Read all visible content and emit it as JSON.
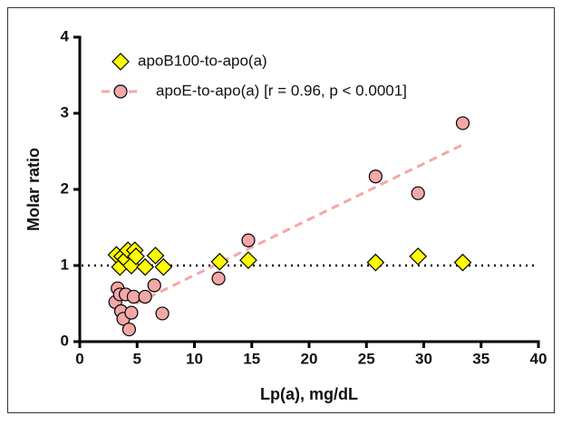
{
  "chart_data": {
    "type": "scatter",
    "x_label": "Lp(a), mg/dL",
    "y_label": "Molar ratio",
    "xlim": [
      0,
      40
    ],
    "xticks": [
      0,
      5,
      10,
      15,
      20,
      25,
      30,
      35,
      40
    ],
    "ylim": [
      0,
      4
    ],
    "yticks": [
      0,
      1,
      2,
      3,
      4
    ],
    "hline": 1,
    "series": [
      {
        "name": "apoB100-to-apo(a)",
        "color": "#ffff00",
        "marker": "diamond",
        "x": [
          3.2,
          3.5,
          3.7,
          4.0,
          4.2,
          4.5,
          4.8,
          4.9,
          5.7,
          6.6,
          7.3,
          12.2,
          14.7,
          25.8,
          29.5,
          33.4
        ],
        "values": [
          1.14,
          0.98,
          1.12,
          1.08,
          1.2,
          1.0,
          1.2,
          1.12,
          0.98,
          1.13,
          0.98,
          1.05,
          1.07,
          1.04,
          1.12,
          1.04
        ]
      },
      {
        "name": "apoE-to-apo(a) [r = 0.96, p < 0.0001]",
        "color": "#f4a7a7",
        "marker": "circle",
        "fit_color": "#f4a7a7",
        "x": [
          3.1,
          3.3,
          3.5,
          3.6,
          3.8,
          4.0,
          4.3,
          4.5,
          4.7,
          5.7,
          6.5,
          7.2,
          12.1,
          14.7,
          25.8,
          29.5,
          33.4
        ],
        "values": [
          0.52,
          0.7,
          0.62,
          0.4,
          0.3,
          0.62,
          0.16,
          0.38,
          0.59,
          0.59,
          0.74,
          0.37,
          0.83,
          1.33,
          2.17,
          1.95,
          2.87
        ],
        "fit_x": [
          4.9,
          33.3
        ],
        "fit_y": [
          0.5,
          2.58
        ]
      }
    ]
  }
}
